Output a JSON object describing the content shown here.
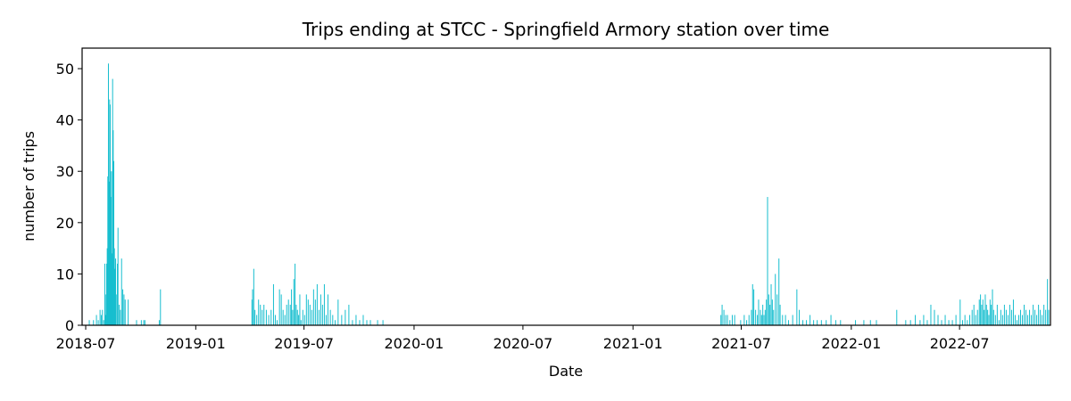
{
  "chart_data": {
    "type": "bar",
    "title": "Trips ending at STCC - Springfield Armory station over time",
    "xlabel": "Date",
    "ylabel": "number of trips",
    "x_ticks": [
      "2018-07",
      "2019-01",
      "2019-07",
      "2020-01",
      "2020-07",
      "2021-01",
      "2021-07",
      "2022-01",
      "2022-07"
    ],
    "y_ticks": [
      "0",
      "10",
      "20",
      "30",
      "40",
      "50"
    ],
    "xlim": [
      "2018-06-25",
      "2022-11-30"
    ],
    "ylim": [
      0,
      54
    ],
    "grid": false,
    "bar_color": "#17becf",
    "series": [
      {
        "values": [
          [
            "2018-07-07",
            1
          ],
          [
            "2018-07-14",
            1
          ],
          [
            "2018-07-19",
            2
          ],
          [
            "2018-07-22",
            1
          ],
          [
            "2018-07-25",
            3
          ],
          [
            "2018-07-27",
            2
          ],
          [
            "2018-07-29",
            3
          ],
          [
            "2018-07-31",
            1
          ],
          [
            "2018-08-02",
            12
          ],
          [
            "2018-08-03",
            6
          ],
          [
            "2018-08-04",
            2
          ],
          [
            "2018-08-05",
            12
          ],
          [
            "2018-08-06",
            15
          ],
          [
            "2018-08-07",
            29
          ],
          [
            "2018-08-08",
            51
          ],
          [
            "2018-08-09",
            28
          ],
          [
            "2018-08-10",
            44
          ],
          [
            "2018-08-11",
            43
          ],
          [
            "2018-08-12",
            25
          ],
          [
            "2018-08-13",
            30
          ],
          [
            "2018-08-14",
            14
          ],
          [
            "2018-08-15",
            48
          ],
          [
            "2018-08-16",
            38
          ],
          [
            "2018-08-17",
            32
          ],
          [
            "2018-08-18",
            15
          ],
          [
            "2018-08-19",
            11
          ],
          [
            "2018-08-20",
            13
          ],
          [
            "2018-08-21",
            6
          ],
          [
            "2018-08-23",
            12
          ],
          [
            "2018-08-24",
            19
          ],
          [
            "2018-08-26",
            4
          ],
          [
            "2018-08-28",
            3
          ],
          [
            "2018-08-30",
            13
          ],
          [
            "2018-09-01",
            7
          ],
          [
            "2018-09-03",
            6
          ],
          [
            "2018-09-05",
            5
          ],
          [
            "2018-09-10",
            5
          ],
          [
            "2018-09-24",
            1
          ],
          [
            "2018-10-02",
            1
          ],
          [
            "2018-10-06",
            1
          ],
          [
            "2018-10-08",
            1
          ],
          [
            "2018-11-01",
            1
          ],
          [
            "2018-11-03",
            7
          ],
          [
            "2019-04-05",
            5
          ],
          [
            "2019-04-06",
            7
          ],
          [
            "2019-04-08",
            11
          ],
          [
            "2019-04-10",
            3
          ],
          [
            "2019-04-13",
            2
          ],
          [
            "2019-04-16",
            5
          ],
          [
            "2019-04-19",
            4
          ],
          [
            "2019-04-22",
            3
          ],
          [
            "2019-04-25",
            4
          ],
          [
            "2019-04-29",
            3
          ],
          [
            "2019-05-03",
            2
          ],
          [
            "2019-05-07",
            3
          ],
          [
            "2019-05-11",
            8
          ],
          [
            "2019-05-14",
            2
          ],
          [
            "2019-05-17",
            1
          ],
          [
            "2019-05-21",
            7
          ],
          [
            "2019-05-24",
            6
          ],
          [
            "2019-05-27",
            3
          ],
          [
            "2019-05-30",
            2
          ],
          [
            "2019-06-02",
            4
          ],
          [
            "2019-06-05",
            5
          ],
          [
            "2019-06-08",
            4
          ],
          [
            "2019-06-10",
            7
          ],
          [
            "2019-06-12",
            3
          ],
          [
            "2019-06-14",
            9
          ],
          [
            "2019-06-16",
            12
          ],
          [
            "2019-06-18",
            4
          ],
          [
            "2019-06-20",
            3
          ],
          [
            "2019-06-22",
            2
          ],
          [
            "2019-06-24",
            6
          ],
          [
            "2019-06-26",
            1
          ],
          [
            "2019-06-29",
            3
          ],
          [
            "2019-07-02",
            2
          ],
          [
            "2019-07-05",
            6
          ],
          [
            "2019-07-08",
            5
          ],
          [
            "2019-07-11",
            4
          ],
          [
            "2019-07-14",
            3
          ],
          [
            "2019-07-17",
            7
          ],
          [
            "2019-07-20",
            5
          ],
          [
            "2019-07-23",
            8
          ],
          [
            "2019-07-26",
            3
          ],
          [
            "2019-07-29",
            6
          ],
          [
            "2019-08-01",
            4
          ],
          [
            "2019-08-04",
            8
          ],
          [
            "2019-08-07",
            2
          ],
          [
            "2019-08-10",
            6
          ],
          [
            "2019-08-14",
            3
          ],
          [
            "2019-08-18",
            2
          ],
          [
            "2019-08-22",
            1
          ],
          [
            "2019-08-27",
            5
          ],
          [
            "2019-09-02",
            2
          ],
          [
            "2019-09-08",
            3
          ],
          [
            "2019-09-14",
            4
          ],
          [
            "2019-09-20",
            1
          ],
          [
            "2019-09-26",
            2
          ],
          [
            "2019-10-02",
            1
          ],
          [
            "2019-10-08",
            2
          ],
          [
            "2019-10-14",
            1
          ],
          [
            "2019-10-20",
            1
          ],
          [
            "2019-11-01",
            1
          ],
          [
            "2019-11-10",
            1
          ],
          [
            "2021-05-28",
            2
          ],
          [
            "2021-05-30",
            4
          ],
          [
            "2021-06-02",
            3
          ],
          [
            "2021-06-05",
            2
          ],
          [
            "2021-06-08",
            2
          ],
          [
            "2021-06-12",
            1
          ],
          [
            "2021-06-16",
            2
          ],
          [
            "2021-06-20",
            2
          ],
          [
            "2021-06-30",
            1
          ],
          [
            "2021-07-06",
            2
          ],
          [
            "2021-07-10",
            1
          ],
          [
            "2021-07-14",
            2
          ],
          [
            "2021-07-18",
            3
          ],
          [
            "2021-07-20",
            8
          ],
          [
            "2021-07-22",
            7
          ],
          [
            "2021-07-25",
            3
          ],
          [
            "2021-07-28",
            2
          ],
          [
            "2021-07-30",
            5
          ],
          [
            "2021-08-02",
            3
          ],
          [
            "2021-08-04",
            2
          ],
          [
            "2021-08-06",
            4
          ],
          [
            "2021-08-08",
            2
          ],
          [
            "2021-08-10",
            3
          ],
          [
            "2021-08-12",
            5
          ],
          [
            "2021-08-14",
            25
          ],
          [
            "2021-08-16",
            6
          ],
          [
            "2021-08-18",
            4
          ],
          [
            "2021-08-20",
            8
          ],
          [
            "2021-08-22",
            5
          ],
          [
            "2021-08-24",
            3
          ],
          [
            "2021-08-27",
            10
          ],
          [
            "2021-08-30",
            6
          ],
          [
            "2021-09-02",
            13
          ],
          [
            "2021-09-04",
            4
          ],
          [
            "2021-09-08",
            2
          ],
          [
            "2021-09-13",
            2
          ],
          [
            "2021-09-18",
            1
          ],
          [
            "2021-09-25",
            2
          ],
          [
            "2021-10-02",
            7
          ],
          [
            "2021-10-06",
            3
          ],
          [
            "2021-10-12",
            1
          ],
          [
            "2021-10-18",
            1
          ],
          [
            "2021-10-24",
            2
          ],
          [
            "2021-10-30",
            1
          ],
          [
            "2021-11-05",
            1
          ],
          [
            "2021-11-12",
            1
          ],
          [
            "2021-11-20",
            1
          ],
          [
            "2021-11-28",
            2
          ],
          [
            "2021-12-06",
            1
          ],
          [
            "2021-12-14",
            1
          ],
          [
            "2022-01-08",
            1
          ],
          [
            "2022-01-22",
            1
          ],
          [
            "2022-02-02",
            1
          ],
          [
            "2022-02-12",
            1
          ],
          [
            "2022-03-18",
            3
          ],
          [
            "2022-04-02",
            1
          ],
          [
            "2022-04-10",
            1
          ],
          [
            "2022-04-18",
            2
          ],
          [
            "2022-04-26",
            1
          ],
          [
            "2022-05-02",
            2
          ],
          [
            "2022-05-08",
            1
          ],
          [
            "2022-05-14",
            4
          ],
          [
            "2022-05-20",
            3
          ],
          [
            "2022-05-26",
            2
          ],
          [
            "2022-06-01",
            1
          ],
          [
            "2022-06-07",
            2
          ],
          [
            "2022-06-13",
            1
          ],
          [
            "2022-06-19",
            1
          ],
          [
            "2022-06-25",
            2
          ],
          [
            "2022-07-02",
            5
          ],
          [
            "2022-07-06",
            1
          ],
          [
            "2022-07-10",
            2
          ],
          [
            "2022-07-14",
            1
          ],
          [
            "2022-07-18",
            2
          ],
          [
            "2022-07-22",
            3
          ],
          [
            "2022-07-25",
            4
          ],
          [
            "2022-07-28",
            2
          ],
          [
            "2022-07-31",
            3
          ],
          [
            "2022-08-03",
            5
          ],
          [
            "2022-08-05",
            6
          ],
          [
            "2022-08-07",
            4
          ],
          [
            "2022-08-09",
            5
          ],
          [
            "2022-08-11",
            3
          ],
          [
            "2022-08-13",
            6
          ],
          [
            "2022-08-15",
            4
          ],
          [
            "2022-08-17",
            3
          ],
          [
            "2022-08-19",
            2
          ],
          [
            "2022-08-21",
            5
          ],
          [
            "2022-08-23",
            4
          ],
          [
            "2022-08-25",
            7
          ],
          [
            "2022-08-27",
            3
          ],
          [
            "2022-08-30",
            2
          ],
          [
            "2022-09-02",
            4
          ],
          [
            "2022-09-05",
            1
          ],
          [
            "2022-09-08",
            3
          ],
          [
            "2022-09-11",
            2
          ],
          [
            "2022-09-14",
            4
          ],
          [
            "2022-09-17",
            3
          ],
          [
            "2022-09-20",
            2
          ],
          [
            "2022-09-23",
            4
          ],
          [
            "2022-09-26",
            3
          ],
          [
            "2022-09-29",
            5
          ],
          [
            "2022-10-02",
            2
          ],
          [
            "2022-10-05",
            1
          ],
          [
            "2022-10-08",
            2
          ],
          [
            "2022-10-11",
            3
          ],
          [
            "2022-10-14",
            2
          ],
          [
            "2022-10-17",
            4
          ],
          [
            "2022-10-20",
            3
          ],
          [
            "2022-10-23",
            2
          ],
          [
            "2022-10-26",
            3
          ],
          [
            "2022-10-29",
            2
          ],
          [
            "2022-11-01",
            4
          ],
          [
            "2022-11-04",
            3
          ],
          [
            "2022-11-07",
            2
          ],
          [
            "2022-11-10",
            4
          ],
          [
            "2022-11-13",
            3
          ],
          [
            "2022-11-16",
            2
          ],
          [
            "2022-11-19",
            4
          ],
          [
            "2022-11-22",
            3
          ],
          [
            "2022-11-25",
            9
          ],
          [
            "2022-11-27",
            3
          ]
        ]
      }
    ]
  }
}
